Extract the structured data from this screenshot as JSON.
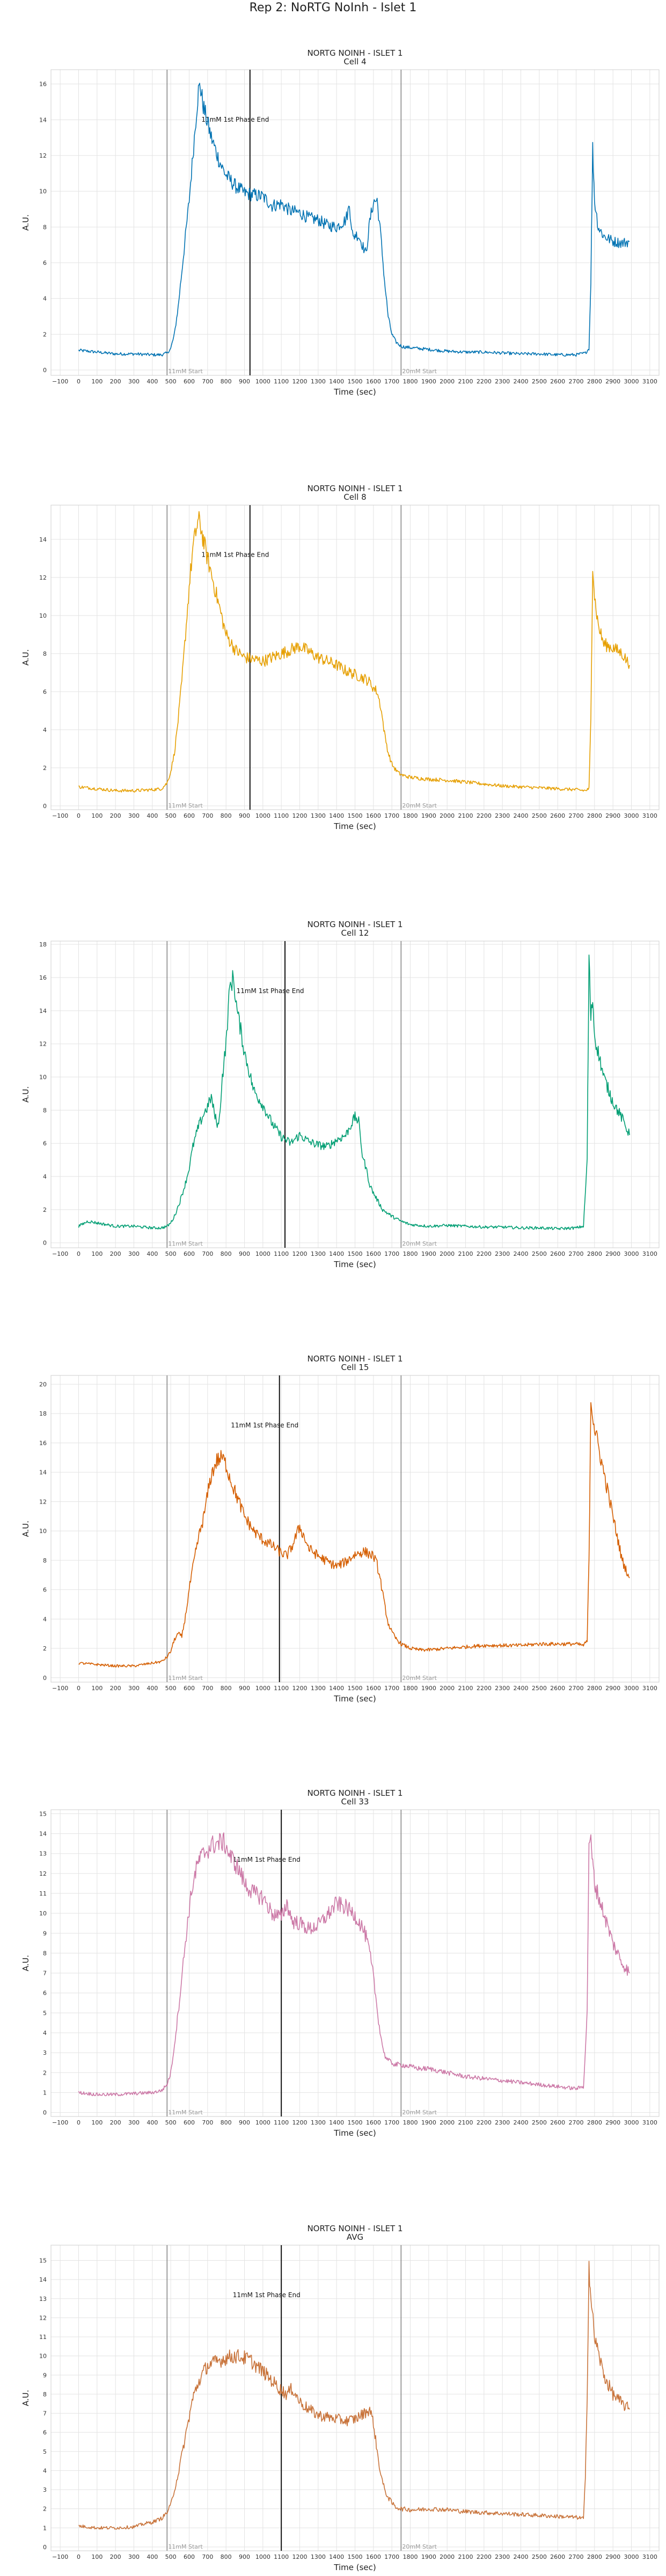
{
  "suptitle": "Rep 2: NoRTG NoInh - Islet 1",
  "common": {
    "xlabel": "Time (sec)",
    "ylabel": "A.U.",
    "xticks": [
      -100,
      0,
      100,
      200,
      300,
      400,
      500,
      600,
      700,
      800,
      900,
      1000,
      1100,
      1200,
      1300,
      1400,
      1500,
      1600,
      1700,
      1800,
      1900,
      2000,
      2100,
      2200,
      2300,
      2400,
      2500,
      2600,
      2700,
      2800,
      2900,
      3000,
      3100
    ],
    "xlim": [
      -150,
      3150
    ],
    "start_label_1": "11mM Start",
    "start_label_2": "20mM Start",
    "phase_label": "11mM 1st Phase End",
    "start_x_1": 480,
    "start_x_2": 1750,
    "grid": true
  },
  "chart_data": [
    {
      "type": "line",
      "title": "NORTG NOINH - ISLET 1",
      "subtitle": "Cell 4",
      "color": "#0072b2",
      "ylim": [
        -0.3,
        16.8
      ],
      "yticks": [
        0,
        2,
        4,
        6,
        8,
        10,
        12,
        14,
        16
      ],
      "phase_end_x": 930,
      "series": [
        {
          "x": [
            0,
            100,
            200,
            300,
            400,
            450,
            480,
            500,
            520,
            540,
            560,
            580,
            600,
            620,
            640,
            650,
            660,
            670,
            680,
            700,
            720,
            740,
            760,
            780,
            800,
            850,
            900,
            950,
            1000,
            1050,
            1100,
            1150,
            1200,
            1250,
            1300,
            1350,
            1400,
            1450,
            1470,
            1490,
            1500,
            1520,
            1540,
            1560,
            1580,
            1600,
            1620,
            1640,
            1660,
            1680,
            1700,
            1720,
            1740,
            1760,
            1800,
            1900,
            2000,
            2100,
            2200,
            2300,
            2400,
            2500,
            2600,
            2700,
            2750,
            2770,
            2780,
            2790,
            2800,
            2820,
            2850,
            2900,
            2950,
            2990
          ],
          "values": [
            1.1,
            1.0,
            0.9,
            0.9,
            0.85,
            0.85,
            0.95,
            1.2,
            2.0,
            3.5,
            5.5,
            7.5,
            9.5,
            12.0,
            14.5,
            15.6,
            15.9,
            15.2,
            14.6,
            13.8,
            13.0,
            12.4,
            11.8,
            11.3,
            10.9,
            10.3,
            9.9,
            9.8,
            9.7,
            9.2,
            9.3,
            8.9,
            8.8,
            8.5,
            8.4,
            8.1,
            8.0,
            8.4,
            9.2,
            7.3,
            7.6,
            7.5,
            7.0,
            6.5,
            8.3,
            9.4,
            9.5,
            7.5,
            5.0,
            3.0,
            2.0,
            1.6,
            1.4,
            1.3,
            1.25,
            1.15,
            1.05,
            1.0,
            1.0,
            0.95,
            0.9,
            0.9,
            0.85,
            0.85,
            0.95,
            1.2,
            5.0,
            12.4,
            9.5,
            8.0,
            7.5,
            7.2,
            7.1,
            7.2
          ]
        }
      ]
    },
    {
      "type": "line",
      "title": "NORTG NOINH - ISLET 1",
      "subtitle": "Cell 8",
      "color": "#e69f00",
      "ylim": [
        -0.2,
        15.8
      ],
      "yticks": [
        0,
        2,
        4,
        6,
        8,
        10,
        12,
        14
      ],
      "phase_end_x": 930,
      "series": [
        {
          "x": [
            0,
            100,
            200,
            300,
            400,
            450,
            480,
            500,
            520,
            540,
            560,
            580,
            600,
            620,
            640,
            650,
            660,
            670,
            680,
            700,
            720,
            740,
            760,
            780,
            800,
            850,
            900,
            950,
            1000,
            1050,
            1100,
            1150,
            1200,
            1250,
            1300,
            1350,
            1400,
            1450,
            1500,
            1550,
            1580,
            1600,
            1620,
            1640,
            1660,
            1680,
            1700,
            1720,
            1740,
            1760,
            1800,
            1900,
            2000,
            2100,
            2200,
            2300,
            2400,
            2500,
            2600,
            2700,
            2750,
            2770,
            2780,
            2790,
            2800,
            2820,
            2850,
            2900,
            2950,
            2990
          ],
          "values": [
            1.0,
            0.9,
            0.8,
            0.8,
            0.85,
            0.9,
            1.2,
            1.8,
            2.8,
            4.5,
            6.5,
            9.0,
            11.5,
            13.5,
            14.6,
            15.0,
            14.8,
            14.3,
            13.8,
            13.0,
            12.2,
            11.4,
            10.6,
            9.8,
            9.0,
            8.2,
            7.8,
            7.7,
            7.6,
            7.8,
            8.0,
            8.2,
            8.4,
            8.1,
            7.8,
            7.6,
            7.4,
            7.1,
            6.9,
            6.7,
            6.5,
            6.2,
            6.0,
            5.2,
            3.8,
            2.8,
            2.2,
            1.9,
            1.7,
            1.6,
            1.5,
            1.4,
            1.35,
            1.25,
            1.15,
            1.05,
            1.0,
            0.95,
            0.9,
            0.85,
            0.8,
            0.9,
            4.5,
            12.8,
            11.0,
            9.5,
            8.5,
            8.3,
            8.0,
            7.4
          ]
        }
      ]
    },
    {
      "type": "line",
      "title": "NORTG NOINH - ISLET 1",
      "subtitle": "Cell 12",
      "color": "#009e73",
      "ylim": [
        -0.3,
        18.2
      ],
      "yticks": [
        0,
        2,
        4,
        6,
        8,
        10,
        12,
        14,
        16,
        18
      ],
      "phase_end_x": 1120,
      "series": [
        {
          "x": [
            0,
            50,
            100,
            200,
            300,
            400,
            450,
            480,
            500,
            520,
            550,
            580,
            600,
            620,
            650,
            680,
            700,
            720,
            740,
            760,
            780,
            800,
            820,
            840,
            860,
            880,
            900,
            920,
            950,
            1000,
            1050,
            1100,
            1150,
            1200,
            1250,
            1300,
            1350,
            1400,
            1450,
            1500,
            1520,
            1540,
            1560,
            1580,
            1600,
            1650,
            1700,
            1750,
            1800,
            1900,
            2000,
            2100,
            2200,
            2300,
            2400,
            2500,
            2600,
            2700,
            2740,
            2760,
            2770,
            2780,
            2790,
            2800,
            2820,
            2850,
            2900,
            2950,
            2990
          ],
          "values": [
            1.0,
            1.3,
            1.2,
            1.0,
            1.0,
            0.9,
            0.9,
            1.0,
            1.2,
            1.6,
            2.5,
            3.6,
            4.5,
            5.8,
            7.0,
            7.8,
            8.2,
            8.8,
            7.6,
            7.0,
            10.0,
            12.0,
            15.4,
            16.0,
            14.0,
            12.8,
            11.5,
            10.6,
            9.2,
            8.3,
            7.2,
            6.4,
            6.0,
            6.5,
            6.1,
            5.9,
            5.8,
            6.2,
            6.5,
            7.6,
            7.3,
            5.3,
            4.5,
            3.5,
            3.0,
            2.0,
            1.6,
            1.3,
            1.1,
            1.0,
            1.05,
            1.0,
            0.95,
            0.95,
            0.9,
            0.9,
            0.85,
            0.9,
            1.0,
            5.0,
            17.2,
            13.5,
            14.8,
            12.5,
            11.5,
            10.0,
            8.5,
            7.5,
            6.5
          ]
        }
      ]
    },
    {
      "type": "line",
      "title": "NORTG NOINH - ISLET 1",
      "subtitle": "Cell 15",
      "color": "#d55e00",
      "ylim": [
        -0.3,
        20.6
      ],
      "yticks": [
        0,
        2,
        4,
        6,
        8,
        10,
        12,
        14,
        16,
        18,
        20
      ],
      "phase_end_x": 1090,
      "series": [
        {
          "x": [
            0,
            100,
            200,
            300,
            400,
            450,
            480,
            500,
            520,
            540,
            560,
            580,
            600,
            620,
            650,
            680,
            700,
            720,
            750,
            780,
            800,
            830,
            860,
            900,
            950,
            1000,
            1050,
            1100,
            1130,
            1160,
            1200,
            1250,
            1300,
            1350,
            1400,
            1450,
            1500,
            1550,
            1600,
            1620,
            1640,
            1660,
            1680,
            1700,
            1720,
            1750,
            1800,
            1850,
            1900,
            2000,
            2100,
            2200,
            2300,
            2400,
            2500,
            2600,
            2700,
            2740,
            2760,
            2770,
            2780,
            2790,
            2800,
            2850,
            2900,
            2950,
            2990
          ],
          "values": [
            1.0,
            0.9,
            0.8,
            0.8,
            1.0,
            1.1,
            1.4,
            1.8,
            2.6,
            3.0,
            2.8,
            4.2,
            6.0,
            7.5,
            9.5,
            11.0,
            12.5,
            13.8,
            14.8,
            15.0,
            14.5,
            13.3,
            12.3,
            11.0,
            10.0,
            9.4,
            9.0,
            8.5,
            8.3,
            9.0,
            10.3,
            8.8,
            8.3,
            7.9,
            7.6,
            7.9,
            8.4,
            8.6,
            8.3,
            7.7,
            6.5,
            5.0,
            3.7,
            3.1,
            2.7,
            2.3,
            2.0,
            1.9,
            1.9,
            2.0,
            2.1,
            2.2,
            2.2,
            2.2,
            2.3,
            2.3,
            2.3,
            2.2,
            2.5,
            8.0,
            19.0,
            18.0,
            17.0,
            14.0,
            11.0,
            8.0,
            6.8
          ]
        }
      ]
    },
    {
      "type": "line",
      "title": "NORTG NOINH - ISLET 1",
      "subtitle": "Cell 33",
      "color": "#cc79a7",
      "ylim": [
        -0.2,
        15.2
      ],
      "yticks": [
        0,
        1,
        2,
        3,
        4,
        5,
        6,
        7,
        8,
        9,
        10,
        11,
        12,
        13,
        14,
        15
      ],
      "phase_end_x": 1100,
      "series": [
        {
          "x": [
            0,
            100,
            200,
            300,
            400,
            450,
            480,
            500,
            520,
            540,
            560,
            580,
            600,
            620,
            650,
            680,
            700,
            720,
            750,
            780,
            800,
            820,
            850,
            880,
            900,
            950,
            1000,
            1050,
            1100,
            1130,
            1160,
            1200,
            1250,
            1300,
            1350,
            1400,
            1450,
            1500,
            1520,
            1540,
            1560,
            1580,
            1600,
            1620,
            1640,
            1660,
            1680,
            1700,
            1720,
            1750,
            1800,
            1850,
            1900,
            2000,
            2100,
            2200,
            2300,
            2400,
            2500,
            2600,
            2700,
            2740,
            2760,
            2770,
            2780,
            2790,
            2800,
            2850,
            2900,
            2950,
            2990
          ],
          "values": [
            1.0,
            0.9,
            0.9,
            0.95,
            1.0,
            1.1,
            1.4,
            2.0,
            3.4,
            5.0,
            6.8,
            8.6,
            10.2,
            11.5,
            12.6,
            13.0,
            13.2,
            13.4,
            13.5,
            13.6,
            13.4,
            12.9,
            12.5,
            12.0,
            11.5,
            11.0,
            10.8,
            10.0,
            9.8,
            10.5,
            9.6,
            9.5,
            9.2,
            9.4,
            9.9,
            10.5,
            10.3,
            9.9,
            9.6,
            9.3,
            8.8,
            8.0,
            6.8,
            5.2,
            3.8,
            2.9,
            2.6,
            2.5,
            2.4,
            2.4,
            2.3,
            2.2,
            2.2,
            2.0,
            1.8,
            1.7,
            1.6,
            1.5,
            1.4,
            1.3,
            1.2,
            1.3,
            5.0,
            13.8,
            13.5,
            12.5,
            11.5,
            10.0,
            8.5,
            7.5,
            7.0
          ]
        }
      ]
    },
    {
      "type": "line",
      "title": "NORTG NOINH - ISLET 1",
      "subtitle": "AVG",
      "color": "#c8733a",
      "ylim": [
        -0.2,
        15.8
      ],
      "yticks": [
        0,
        1,
        2,
        3,
        4,
        5,
        6,
        7,
        8,
        9,
        10,
        11,
        12,
        13,
        14,
        15
      ],
      "phase_end_x": 1100,
      "series": [
        {
          "x": [
            0,
            100,
            200,
            300,
            350,
            400,
            450,
            480,
            500,
            520,
            540,
            560,
            580,
            600,
            620,
            650,
            680,
            700,
            750,
            800,
            850,
            900,
            930,
            950,
            1000,
            1050,
            1100,
            1130,
            1160,
            1200,
            1250,
            1300,
            1350,
            1400,
            1450,
            1500,
            1550,
            1580,
            1600,
            1620,
            1640,
            1660,
            1680,
            1700,
            1720,
            1750,
            1800,
            1850,
            1900,
            2000,
            2100,
            2200,
            2300,
            2400,
            2500,
            2600,
            2700,
            2740,
            2750,
            2760,
            2770,
            2780,
            2800,
            2850,
            2900,
            2950,
            2990
          ],
          "values": [
            1.1,
            1.0,
            1.0,
            1.05,
            1.2,
            1.3,
            1.5,
            1.8,
            2.2,
            3.0,
            3.8,
            4.8,
            5.8,
            6.8,
            7.8,
            8.6,
            9.2,
            9.5,
            9.7,
            9.9,
            10.0,
            9.9,
            9.8,
            9.6,
            9.2,
            8.7,
            8.2,
            8.0,
            8.3,
            7.6,
            7.2,
            6.9,
            6.8,
            6.7,
            6.6,
            6.7,
            7.0,
            7.2,
            6.5,
            5.0,
            3.8,
            3.0,
            2.6,
            2.3,
            2.1,
            2.0,
            1.95,
            1.95,
            2.0,
            1.95,
            1.85,
            1.8,
            1.75,
            1.7,
            1.65,
            1.6,
            1.55,
            1.5,
            3.5,
            8.0,
            14.8,
            13.0,
            11.0,
            9.0,
            8.0,
            7.5,
            7.2
          ]
        }
      ]
    }
  ]
}
